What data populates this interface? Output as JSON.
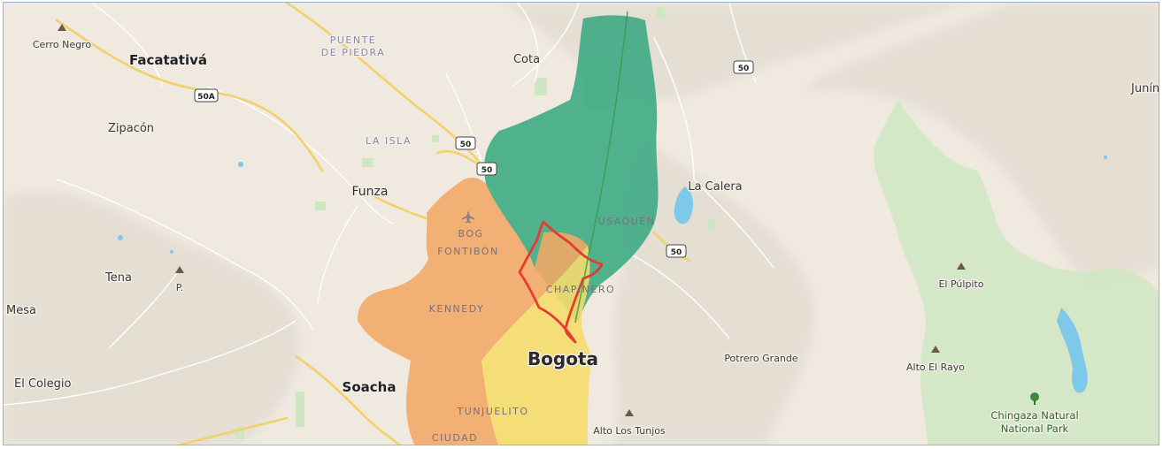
{
  "map": {
    "colors": {
      "land": "#efe9df",
      "relief": "#e2dcd1",
      "water": "#7ec8ea",
      "park": "#cfe6c2",
      "road": "#f1d26a",
      "minor_road": "#ffffff",
      "zone_green": "#3aa882",
      "zone_orange": "#f2a765",
      "zone_yellow": "#f5dc6b",
      "outline_red": "#e63b2e"
    },
    "places": [
      {
        "name": "Cerro Negro",
        "kind": "peak"
      },
      {
        "name": "Facatativá",
        "kind": "city"
      },
      {
        "name": "Zipacón",
        "kind": "town"
      },
      {
        "name": "Tena",
        "kind": "town"
      },
      {
        "name": "Mesa",
        "kind": "town"
      },
      {
        "name": "El Colegio",
        "kind": "town"
      },
      {
        "name": "Funza",
        "kind": "town"
      },
      {
        "name": "Soacha",
        "kind": "city"
      },
      {
        "name": "Cota",
        "kind": "town"
      },
      {
        "name": "La Calera",
        "kind": "town"
      },
      {
        "name": "Bogota",
        "kind": "capital"
      },
      {
        "name": "Potrero Grande",
        "kind": "area"
      },
      {
        "name": "Alto Los Tunjos",
        "kind": "peak"
      },
      {
        "name": "El Púlpito",
        "kind": "peak"
      },
      {
        "name": "Alto El Rayo",
        "kind": "peak"
      },
      {
        "name": "Junín",
        "kind": "town"
      },
      {
        "name": "P.",
        "kind": "peak"
      }
    ],
    "park": {
      "line1": "Chingaza Natural",
      "line2": "National Park"
    },
    "areas": {
      "puente_line1": "PUENTE",
      "puente_line2": "DE PIEDRA",
      "la_isla": "LA ISLA"
    },
    "airport": {
      "code": "BOG"
    },
    "districts": {
      "usaquen": "USAQUÉN",
      "fontibon": "FONTIBÓN",
      "chapinero": "CHAPINERO",
      "kennedy": "KENNEDY",
      "tunjuelito": "TUNJUELITO",
      "ciudad": "CIUDAD"
    },
    "shields": {
      "r50a": "50A",
      "r50_a": "50",
      "r50_b": "50",
      "r50_c": "50",
      "r50_d": "50"
    },
    "icons": {
      "peak": "peak-icon",
      "tree": "tree-icon",
      "airport": "airport-icon"
    }
  }
}
